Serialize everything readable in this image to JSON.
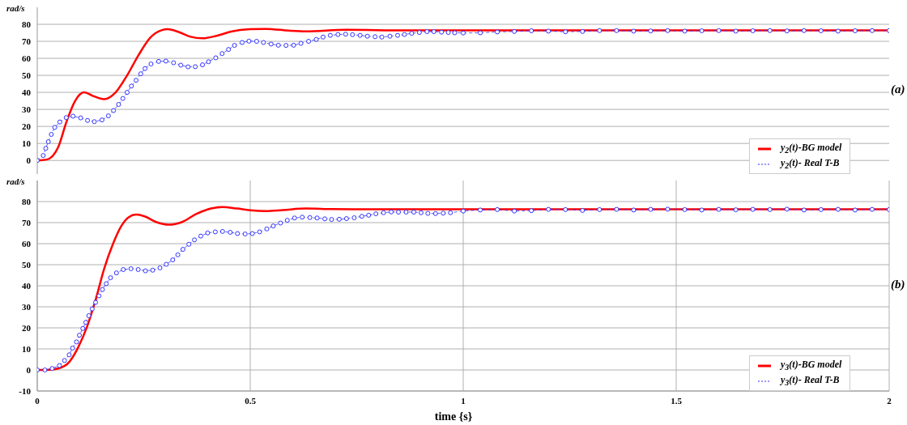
{
  "chart_data": [
    {
      "type": "line",
      "ylabel": "rad/s",
      "annotations": [
        "(a)"
      ],
      "xlim": [
        0,
        2
      ],
      "xticks": [
        0,
        0.5,
        1,
        1.5,
        2
      ],
      "ylim": [
        -8,
        90
      ],
      "yticks": [
        0,
        10,
        20,
        30,
        40,
        50,
        60,
        70,
        80
      ],
      "grid": true,
      "legend": "bottom right",
      "tick_labels": "y",
      "series": [
        {
          "name": "y$_{2}$(t)-BG model",
          "color": "#ff0000",
          "marker": "none",
          "line_style": "solid",
          "x": [
            0,
            0.022,
            0.049,
            0.069,
            0.089,
            0.11,
            0.13,
            0.157,
            0.184,
            0.211,
            0.238,
            0.266,
            0.293,
            0.306,
            0.333,
            0.36,
            0.388,
            0.421,
            0.455,
            0.5,
            0.537,
            0.59,
            0.631,
            0.726,
            0.862,
            1,
            1.5,
            2
          ],
          "values": [
            0,
            0.5,
            7.7,
            23,
            35,
            40,
            38,
            36,
            40,
            50,
            62,
            72.3,
            76.6,
            77.1,
            75.4,
            72.7,
            71.8,
            73.2,
            75.7,
            77.1,
            77.3,
            76.3,
            75.9,
            76.8,
            76.4,
            76.5,
            76.5,
            76.5
          ]
        },
        {
          "name": "y$_{2}$(t)- Real T-B",
          "color": "#3333ff",
          "marker": "circle",
          "line_style": "dashed",
          "x": [
            0,
            0.014,
            0.02,
            0.026,
            0.033,
            0.041,
            0.053,
            0.068,
            0.084,
            0.102,
            0.118,
            0.134,
            0.152,
            0.167,
            0.179,
            0.191,
            0.201,
            0.211,
            0.221,
            0.232,
            0.243,
            0.253,
            0.267,
            0.285,
            0.302,
            0.32,
            0.337,
            0.354,
            0.371,
            0.388,
            0.402,
            0.419,
            0.434,
            0.449,
            0.463,
            0.481,
            0.497,
            0.515,
            0.531,
            0.549,
            0.566,
            0.584,
            0.602,
            0.619,
            0.637,
            0.655,
            0.671,
            0.688,
            0.706,
            0.724,
            0.74,
            0.758,
            0.775,
            0.793,
            0.809,
            0.828,
            0.846,
            0.862,
            0.879,
            0.897,
            0.915,
            0.931,
            0.949,
            0.965,
            0.98,
            1,
            1.04,
            1.08,
            1.12,
            1.16,
            1.2,
            1.24,
            1.28,
            1.32,
            1.36,
            1.4,
            1.44,
            1.48,
            1.52,
            1.56,
            1.6,
            1.64,
            1.68,
            1.72,
            1.76,
            1.8,
            1.84,
            1.88,
            1.92,
            1.96,
            2
          ],
          "values": [
            0,
            2.9,
            7.1,
            11,
            15.3,
            19.4,
            22.6,
            25.2,
            26,
            25,
            23.5,
            22.8,
            23.8,
            26.2,
            29.3,
            32.9,
            36.4,
            40,
            43.7,
            47.1,
            50.9,
            54,
            56.7,
            58.2,
            58.4,
            57.4,
            56,
            55,
            55.1,
            56.2,
            58,
            60.3,
            62.8,
            65.2,
            67.6,
            69.3,
            70.1,
            70,
            69.3,
            68.4,
            67.7,
            67.6,
            67.7,
            68.8,
            70,
            71.1,
            72.5,
            73.5,
            74,
            74.2,
            73.9,
            73.5,
            73,
            72.7,
            72.5,
            73,
            73.5,
            74,
            74.7,
            75.2,
            75.7,
            75.7,
            75.4,
            75.2,
            75,
            74.9,
            75,
            75.5,
            75.8,
            76.2,
            76,
            75.6,
            75.8,
            76.3,
            76.3,
            76,
            76.1,
            76.3,
            76,
            76.2,
            76.3,
            76,
            76.2,
            76.3,
            76.1,
            76.3,
            76.2,
            76,
            76.2,
            76.3,
            76.3
          ]
        }
      ]
    },
    {
      "type": "line",
      "ylabel": "rad/s",
      "xlabel": "time {s}",
      "annotations": [
        "(b)"
      ],
      "xlim": [
        0,
        2
      ],
      "xticks": [
        0,
        0.5,
        1,
        1.5,
        2
      ],
      "ylim": [
        -10,
        90
      ],
      "yticks": [
        -10,
        0,
        10,
        20,
        30,
        40,
        50,
        60,
        70,
        80
      ],
      "grid": true,
      "legend": "bottom right",
      "series": [
        {
          "name": "y$_{3}$(t)-BG model",
          "color": "#ff0000",
          "marker": "none",
          "line_style": "solid",
          "x": [
            0,
            0.02,
            0.049,
            0.076,
            0.096,
            0.117,
            0.137,
            0.157,
            0.178,
            0.198,
            0.215,
            0.232,
            0.252,
            0.279,
            0.31,
            0.34,
            0.374,
            0.408,
            0.435,
            0.469,
            0.5,
            0.537,
            0.577,
            0.631,
            0.692,
            0.76,
            1,
            1.5,
            2
          ],
          "values": [
            0,
            0,
            0.7,
            4,
            10.7,
            20.6,
            33.3,
            48,
            60,
            68.6,
            72.6,
            73.8,
            73,
            70.3,
            69,
            70.3,
            74.2,
            76.7,
            77.4,
            76.7,
            75.9,
            75.5,
            76,
            76.7,
            76.4,
            76.3,
            76.3,
            76.3,
            76.3
          ]
        },
        {
          "name": "y$_{3}$(t)- Real T-B",
          "color": "#3333ff",
          "marker": "circle",
          "line_style": "dashed",
          "x": [
            0,
            0.018,
            0.035,
            0.052,
            0.064,
            0.075,
            0.083,
            0.092,
            0.099,
            0.107,
            0.114,
            0.121,
            0.129,
            0.137,
            0.145,
            0.153,
            0.162,
            0.172,
            0.186,
            0.202,
            0.22,
            0.237,
            0.254,
            0.271,
            0.288,
            0.303,
            0.318,
            0.33,
            0.342,
            0.356,
            0.369,
            0.384,
            0.4,
            0.418,
            0.435,
            0.453,
            0.47,
            0.488,
            0.505,
            0.522,
            0.539,
            0.554,
            0.571,
            0.587,
            0.604,
            0.622,
            0.64,
            0.657,
            0.675,
            0.691,
            0.709,
            0.726,
            0.744,
            0.762,
            0.778,
            0.795,
            0.813,
            0.831,
            0.848,
            0.866,
            0.884,
            0.901,
            0.917,
            0.935,
            0.953,
            0.97,
            1,
            1.04,
            1.08,
            1.12,
            1.16,
            1.2,
            1.24,
            1.28,
            1.32,
            1.36,
            1.4,
            1.44,
            1.48,
            1.52,
            1.56,
            1.6,
            1.64,
            1.68,
            1.72,
            1.76,
            1.8,
            1.84,
            1.88,
            1.92,
            1.96,
            2
          ],
          "values": [
            0,
            0,
            0.7,
            2.1,
            4.5,
            7.2,
            10.4,
            13.3,
            16.5,
            19.7,
            22.6,
            25.8,
            29,
            32.1,
            35.2,
            38.2,
            41,
            43.8,
            46.1,
            47.7,
            48.1,
            47.7,
            47.1,
            47.4,
            48.5,
            50.2,
            52.3,
            54.7,
            57.3,
            59.7,
            61.8,
            63.6,
            65.1,
            65.6,
            65.8,
            65.4,
            64.8,
            64.6,
            64.8,
            65.6,
            67,
            68.4,
            69.8,
            71.1,
            72.2,
            72.6,
            72.4,
            72.2,
            71.8,
            71.5,
            71.6,
            71.9,
            72.3,
            73,
            73.5,
            74.2,
            74.7,
            75.1,
            75,
            75,
            75,
            74.7,
            74.4,
            74.3,
            74.5,
            74.7,
            75.5,
            76,
            76.2,
            75.5,
            75.7,
            76.3,
            76.2,
            75.8,
            76.2,
            76.3,
            76,
            76.3,
            76.4,
            76.2,
            76,
            76.3,
            76.1,
            76.3,
            76.2,
            76.4,
            76,
            76.2,
            76.3,
            76,
            76.3,
            76.2
          ]
        }
      ]
    }
  ]
}
